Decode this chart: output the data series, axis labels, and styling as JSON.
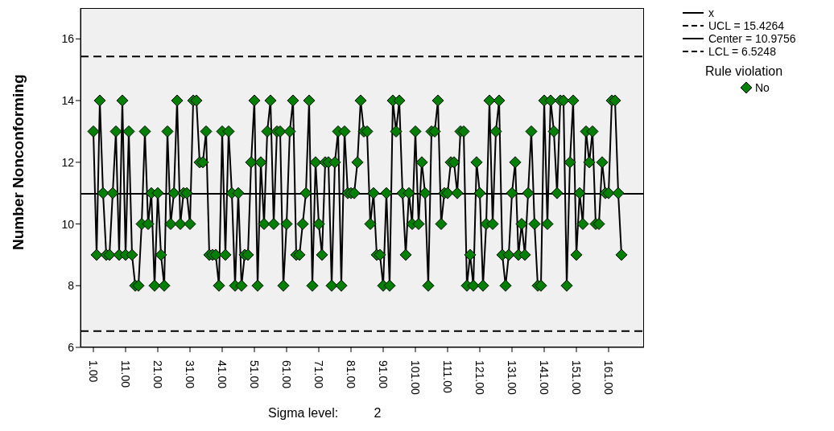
{
  "chart_data": {
    "type": "line",
    "ylabel": "Number Nonconforming",
    "legend_title": "Rule violation",
    "legend": "right",
    "annotations": [
      "Sigma level:          2"
    ],
    "x": [
      1,
      2,
      3,
      4,
      5,
      6,
      7,
      8,
      9,
      10,
      11,
      12,
      13,
      14,
      15,
      16,
      17,
      18,
      19,
      20,
      21,
      22,
      23,
      24,
      25,
      26,
      27,
      28,
      29,
      30,
      31,
      32,
      33,
      34,
      35,
      36,
      37,
      38,
      39,
      40,
      41,
      42,
      43,
      44,
      45,
      46,
      47,
      48,
      49,
      50,
      51,
      52,
      53,
      54,
      55,
      56,
      57,
      58,
      59,
      60,
      61,
      62,
      63,
      64,
      65,
      66,
      67,
      68,
      69,
      70,
      71,
      72,
      73,
      74,
      75,
      76,
      77,
      78,
      79,
      80,
      81,
      82,
      83,
      84,
      85,
      86,
      87,
      88,
      89,
      90,
      91,
      92,
      93,
      94,
      95,
      96,
      97,
      98,
      99,
      100,
      101,
      102,
      103,
      104,
      105,
      106,
      107,
      108,
      109,
      110,
      111,
      112,
      113,
      114,
      115,
      116,
      117,
      118,
      119,
      120,
      121,
      122,
      123,
      124,
      125,
      126,
      127,
      128,
      129,
      130,
      131,
      132,
      133,
      134,
      135,
      136,
      137,
      138,
      139,
      140,
      141,
      142,
      143,
      144,
      145,
      146,
      147,
      148,
      149,
      150,
      151,
      152,
      153,
      154,
      155,
      156,
      157,
      158,
      159,
      160,
      161,
      162,
      163,
      164,
      165
    ],
    "series": [
      {
        "name": "x",
        "color": "#000000",
        "marker": "none",
        "values": [
          13,
          9,
          14,
          11,
          9,
          9,
          11,
          13,
          9,
          14,
          9,
          13,
          9,
          8,
          8,
          10,
          13,
          10,
          11,
          8,
          11,
          9,
          8,
          13,
          10,
          11,
          14,
          10,
          11,
          11,
          10,
          14,
          14,
          12,
          12,
          13,
          9,
          9,
          9,
          8,
          13,
          9,
          13,
          11,
          8,
          11,
          8,
          9,
          9,
          12,
          14,
          8,
          12,
          10,
          13,
          14,
          10,
          13,
          13,
          8,
          10,
          13,
          14,
          9,
          9,
          10,
          11,
          14,
          8,
          12,
          10,
          9,
          12,
          12,
          8,
          12,
          13,
          8,
          13,
          11,
          11,
          11,
          12,
          14,
          13,
          13,
          10,
          11,
          9,
          9,
          8,
          11,
          8,
          14,
          13,
          14,
          11,
          9,
          11,
          10,
          13,
          10,
          12,
          11,
          8,
          13,
          13,
          14,
          10,
          11,
          11,
          12,
          12,
          11,
          13,
          13,
          8,
          9,
          8,
          12,
          11,
          8,
          10,
          14,
          10,
          13,
          14,
          9,
          8,
          9,
          11,
          12,
          9,
          10,
          9,
          11,
          13,
          10,
          8,
          8,
          14,
          10,
          14,
          13,
          11,
          14,
          14,
          8,
          12,
          14,
          9,
          11,
          10,
          13,
          12,
          13,
          10,
          10,
          12,
          11,
          11,
          14,
          14,
          11,
          9
        ]
      },
      {
        "name": "No",
        "type": "scatter",
        "color": "#008000",
        "marker": "diamond",
        "values": [
          13,
          9,
          14,
          11,
          9,
          9,
          11,
          13,
          9,
          14,
          9,
          13,
          9,
          8,
          8,
          10,
          13,
          10,
          11,
          8,
          11,
          9,
          8,
          13,
          10,
          11,
          14,
          10,
          11,
          11,
          10,
          14,
          14,
          12,
          12,
          13,
          9,
          9,
          9,
          8,
          13,
          9,
          13,
          11,
          8,
          11,
          8,
          9,
          9,
          12,
          14,
          8,
          12,
          10,
          13,
          14,
          10,
          13,
          13,
          8,
          10,
          13,
          14,
          9,
          9,
          10,
          11,
          14,
          8,
          12,
          10,
          9,
          12,
          12,
          8,
          12,
          13,
          8,
          13,
          11,
          11,
          11,
          12,
          14,
          13,
          13,
          10,
          11,
          9,
          9,
          8,
          11,
          8,
          14,
          13,
          14,
          11,
          9,
          11,
          10,
          13,
          10,
          12,
          11,
          8,
          13,
          13,
          14,
          10,
          11,
          11,
          12,
          12,
          11,
          13,
          13,
          8,
          9,
          8,
          12,
          11,
          8,
          10,
          14,
          10,
          13,
          14,
          9,
          8,
          9,
          11,
          12,
          9,
          10,
          9,
          11,
          13,
          10,
          8,
          8,
          14,
          10,
          14,
          13,
          11,
          14,
          14,
          8,
          12,
          14,
          9,
          11,
          10,
          13,
          12,
          13,
          10,
          10,
          12,
          11,
          11,
          14,
          14,
          11,
          9
        ]
      }
    ],
    "xlim": [
      -3,
      172
    ],
    "xticks": [
      {
        "value": 1,
        "label": "1.00"
      },
      {
        "value": 11,
        "label": "11.00"
      },
      {
        "value": 21,
        "label": "21.00"
      },
      {
        "value": 31,
        "label": "31.00"
      },
      {
        "value": 41,
        "label": "41.00"
      },
      {
        "value": 51,
        "label": "51.00"
      },
      {
        "value": 61,
        "label": "61.00"
      },
      {
        "value": 71,
        "label": "71.00"
      },
      {
        "value": 81,
        "label": "81.00"
      },
      {
        "value": 91,
        "label": "91.00"
      },
      {
        "value": 101,
        "label": "101.00"
      },
      {
        "value": 111,
        "label": "111.00"
      },
      {
        "value": 121,
        "label": "121.00"
      },
      {
        "value": 131,
        "label": "131.00"
      },
      {
        "value": 141,
        "label": "141.00"
      },
      {
        "value": 151,
        "label": "151.00"
      },
      {
        "value": 161,
        "label": "161.00"
      }
    ],
    "ylim": [
      6,
      17
    ],
    "yticks": [
      6,
      8,
      10,
      12,
      14,
      16
    ],
    "ref_lines": [
      {
        "axis": "y",
        "value": 15.4264,
        "label": "UCL = 15.4264",
        "color": "#000000",
        "line_style": "dashed"
      },
      {
        "axis": "y",
        "value": 10.9756,
        "label": "Center = 10.9756",
        "color": "#000000",
        "line_style": "solid"
      },
      {
        "axis": "y",
        "value": 6.5248,
        "label": "LCL = 6.5248",
        "color": "#000000",
        "line_style": "dashed"
      }
    ]
  }
}
